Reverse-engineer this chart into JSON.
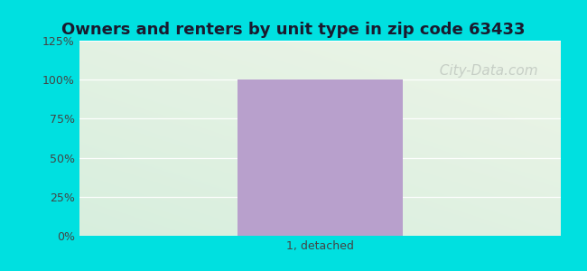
{
  "title": "Owners and renters by unit type in zip code 63433",
  "categories": [
    "1, detached"
  ],
  "values": [
    100
  ],
  "bar_color": "#b8a0cc",
  "bar_alpha": 1.0,
  "ylim": [
    0,
    125
  ],
  "yticks": [
    0,
    25,
    50,
    75,
    100,
    125
  ],
  "ytick_labels": [
    "0%",
    "25%",
    "50%",
    "75%",
    "100%",
    "125%"
  ],
  "title_fontsize": 13,
  "tick_fontsize": 9,
  "bg_outer": "#00e0e0",
  "grad_color_topleft": "#d6eedd",
  "grad_color_bottomright": "#eef5e8",
  "watermark": "  City-Data.com",
  "watermark_color": "#c0c8c0",
  "watermark_fontsize": 11,
  "grid_color": "#e8e8e8",
  "title_color": "#1a1a2e"
}
